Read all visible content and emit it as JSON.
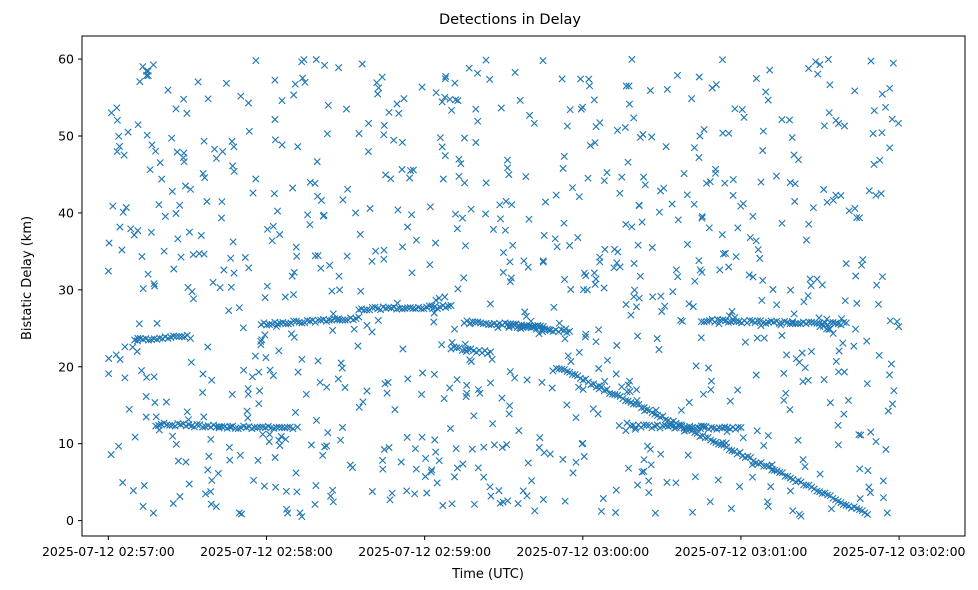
{
  "chart_data": {
    "type": "scatter",
    "title": "Detections in Delay",
    "xlabel": "Time (UTC)",
    "ylabel": "Bistatic Delay (km)",
    "x_ticks": [
      "2025-07-12 02:57:00",
      "2025-07-12 02:58:00",
      "2025-07-12 02:59:00",
      "2025-07-12 03:00:00",
      "2025-07-12 03:01:00",
      "2025-07-12 03:02:00"
    ],
    "xlim": [
      "2025-07-12 02:56:50",
      "2025-07-12 03:02:25"
    ],
    "ylim": [
      -2,
      63
    ],
    "y_ticks": [
      0,
      10,
      20,
      30,
      40,
      50,
      60
    ],
    "grid": false,
    "marker": "x",
    "color": "#1f77b4",
    "tracks": [
      {
        "x_start": "2025-07-12 02:57:10",
        "x_end": "2025-07-12 02:57:30",
        "y_start": 23.5,
        "y_end": 24.0
      },
      {
        "x_start": "2025-07-12 02:57:18",
        "x_end": "2025-07-12 02:57:42",
        "y_start": 12.5,
        "y_end": 12.3
      },
      {
        "x_start": "2025-07-12 02:57:42",
        "x_end": "2025-07-12 02:58:10",
        "y_start": 12.2,
        "y_end": 12.0
      },
      {
        "x_start": "2025-07-12 02:57:58",
        "x_end": "2025-07-12 02:58:35",
        "y_start": 25.5,
        "y_end": 26.3
      },
      {
        "x_start": "2025-07-12 02:58:35",
        "x_end": "2025-07-12 02:59:10",
        "y_start": 27.5,
        "y_end": 27.8
      },
      {
        "x_start": "2025-07-12 02:59:10",
        "x_end": "2025-07-12 02:59:25",
        "y_start": 22.5,
        "y_end": 21.8
      },
      {
        "x_start": "2025-07-12 02:59:15",
        "x_end": "2025-07-12 02:59:45",
        "y_start": 25.8,
        "y_end": 25.3
      },
      {
        "x_start": "2025-07-12 02:59:32",
        "x_end": "2025-07-12 02:59:55",
        "y_start": 25.3,
        "y_end": 24.6
      },
      {
        "x_start": "2025-07-12 02:59:50",
        "x_end": "2025-07-12 03:01:48",
        "y_start": 20.0,
        "y_end": 0.8
      },
      {
        "x_start": "2025-07-12 03:00:18",
        "x_end": "2025-07-12 03:01:00",
        "y_start": 12.3,
        "y_end": 12.0
      },
      {
        "x_start": "2025-07-12 03:00:45",
        "x_end": "2025-07-12 03:01:40",
        "y_start": 26.0,
        "y_end": 25.6
      },
      {
        "x_start": "2025-07-12 03:01:30",
        "x_end": "2025-07-12 03:01:35",
        "y_start": 25.3,
        "y_end": 24.5
      }
    ],
    "noise": {
      "count": 900,
      "x_range": [
        "2025-07-12 02:57:00",
        "2025-07-12 03:02:00"
      ],
      "y_range": [
        0.5,
        60
      ]
    }
  }
}
